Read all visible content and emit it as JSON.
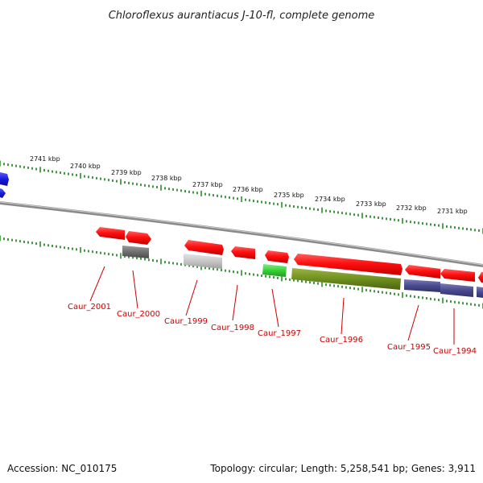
{
  "title": "Chloroflexus aurantiacus J-10-fl, complete genome",
  "accession": "Accession: NC_010175",
  "topology": "Topology: circular; Length: 5,258,541 bp; Genes: 3,911",
  "colors": {
    "backbone": "#8a8a8a",
    "tick": "#2e8b2e",
    "label": "#cc0000",
    "cds": "#ff1010",
    "blue": "#1a1adc",
    "gray_dark": "#6f6f6f",
    "gray_light": "#c6c6c6",
    "green": "#39d039",
    "olive": "#6f8f1f",
    "purple": "#4a4a8e"
  },
  "scale_labels": [
    "2741 kbp",
    "2740 kbp",
    "2739 kbp",
    "2738 kbp",
    "2737 kbp",
    "2736 kbp",
    "2735 kbp",
    "2734 kbp",
    "2733 kbp",
    "2732 kbp",
    "2731 kbp"
  ],
  "gene_labels": [
    "Caur_2001",
    "Caur_2000",
    "Caur_1999",
    "Caur_1998",
    "Caur_1997",
    "Caur_1996",
    "Caur_1995",
    "Caur_1994"
  ]
}
